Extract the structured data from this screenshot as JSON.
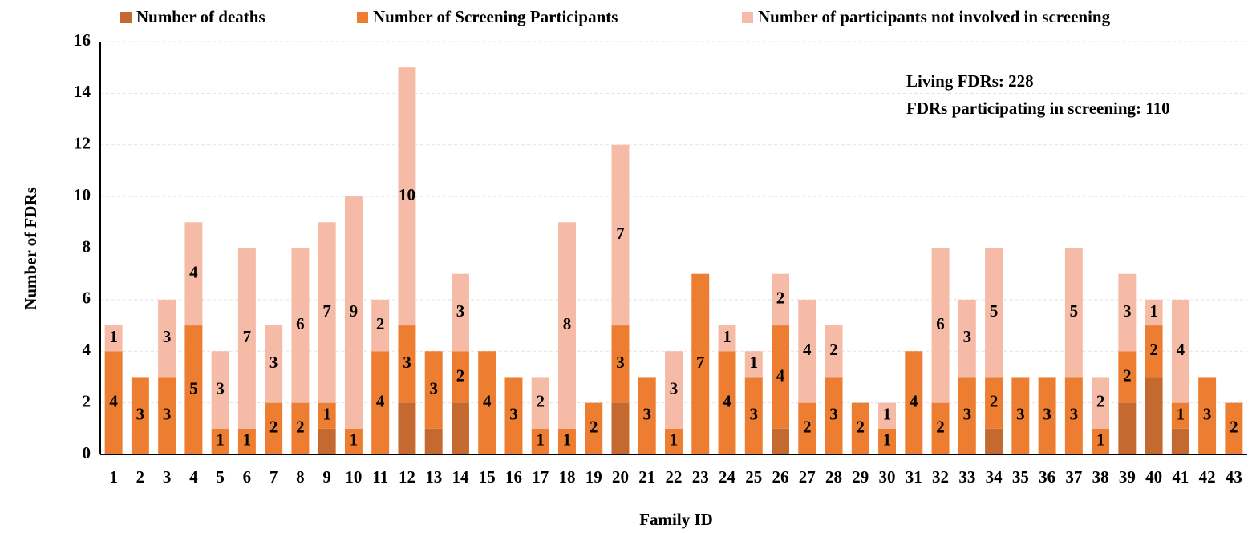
{
  "chart_data": {
    "type": "stacked_bar",
    "y_label": "Number of FDRs",
    "x_label": "Family ID",
    "categories": [
      "1",
      "2",
      "3",
      "4",
      "5",
      "6",
      "7",
      "8",
      "9",
      "10",
      "11",
      "12",
      "13",
      "14",
      "15",
      "16",
      "17",
      "18",
      "19",
      "20",
      "21",
      "22",
      "23",
      "24",
      "25",
      "26",
      "27",
      "28",
      "29",
      "30",
      "31",
      "32",
      "33",
      "34",
      "35",
      "36",
      "37",
      "38",
      "39",
      "40",
      "41",
      "42",
      "43"
    ],
    "series": [
      {
        "name": "Number of deaths",
        "color": "#c4692f",
        "labels": false,
        "values": [
          0,
          0,
          0,
          0,
          0,
          0,
          0,
          0,
          1,
          0,
          0,
          2,
          1,
          2,
          0,
          0,
          0,
          0,
          0,
          2,
          0,
          0,
          0,
          0,
          0,
          1,
          0,
          0,
          0,
          0,
          0,
          0,
          0,
          1,
          0,
          0,
          0,
          0,
          2,
          3,
          1,
          0,
          0
        ]
      },
      {
        "name": "Number of Screening Participants",
        "color": "#ed7d31",
        "labels": true,
        "values": [
          4,
          3,
          3,
          5,
          1,
          1,
          2,
          2,
          1,
          1,
          4,
          3,
          3,
          2,
          4,
          3,
          1,
          1,
          2,
          3,
          3,
          1,
          7,
          4,
          3,
          4,
          2,
          3,
          2,
          1,
          4,
          2,
          3,
          2,
          3,
          3,
          3,
          1,
          2,
          2,
          1,
          3,
          2
        ]
      },
      {
        "name": "Number of participants not involved in screening",
        "color": "#f5bba6",
        "labels": true,
        "values": [
          1,
          null,
          3,
          4,
          3,
          7,
          3,
          6,
          7,
          9,
          2,
          10,
          null,
          3,
          null,
          null,
          2,
          8,
          null,
          7,
          null,
          3,
          null,
          1,
          1,
          2,
          4,
          2,
          null,
          1,
          null,
          6,
          3,
          5,
          null,
          null,
          5,
          2,
          3,
          1,
          4,
          null,
          null
        ]
      }
    ],
    "annotations": [
      "Living FDRs: 228",
      "FDRs participating in screening: 110"
    ],
    "ylim": [
      0,
      16
    ],
    "yticks": [
      0,
      2,
      4,
      6,
      8,
      10,
      12,
      14,
      16
    ],
    "grid": true
  }
}
